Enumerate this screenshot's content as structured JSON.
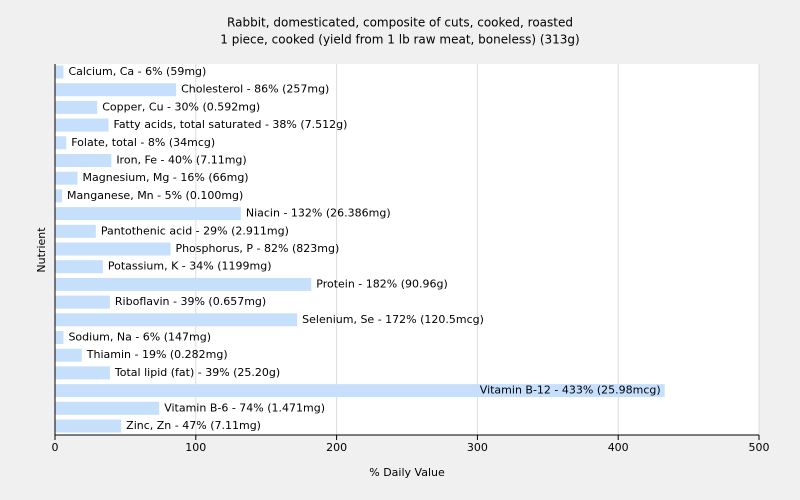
{
  "chart_data": {
    "type": "hbar",
    "title": "Rabbit, domesticated, composite of cuts, cooked, roasted",
    "subtitle": "1 piece, cooked (yield from 1 lb raw meat, boneless) (313g)",
    "xlabel": "% Daily Value",
    "ylabel": "Nutrient",
    "values": [
      6,
      86,
      30,
      38,
      8,
      40,
      16,
      5,
      132,
      29,
      82,
      34,
      182,
      39,
      172,
      6,
      19,
      39,
      433,
      74,
      47
    ],
    "value_labels": [
      "Calcium, Ca - 6% (59mg)",
      "Cholesterol - 86% (257mg)",
      "Copper, Cu - 30% (0.592mg)",
      "Fatty acids, total saturated - 38% (7.512g)",
      "Folate, total - 8% (34mcg)",
      "Iron, Fe - 40% (7.11mg)",
      "Magnesium, Mg - 16% (66mg)",
      "Manganese, Mn - 5% (0.100mg)",
      "Niacin - 132% (26.386mg)",
      "Pantothenic acid - 29% (2.911mg)",
      "Phosphorus, P - 82% (823mg)",
      "Potassium, K - 34% (1199mg)",
      "Protein - 182% (90.96g)",
      "Riboflavin - 39% (0.657mg)",
      "Selenium, Se - 172% (120.5mcg)",
      "Sodium, Na - 6% (147mg)",
      "Thiamin - 19% (0.282mg)",
      "Total lipid (fat) - 39% (25.20g)",
      "Vitamin B-12 - 433% (25.98mcg)",
      "Vitamin B-6 - 74% (1.471mg)",
      "Zinc, Zn - 47% (7.11mg)"
    ],
    "color": "#c6e0fb",
    "xlim": [
      0,
      500
    ],
    "xticks": [
      0,
      100,
      200,
      300,
      400,
      500
    ],
    "grid": true
  }
}
